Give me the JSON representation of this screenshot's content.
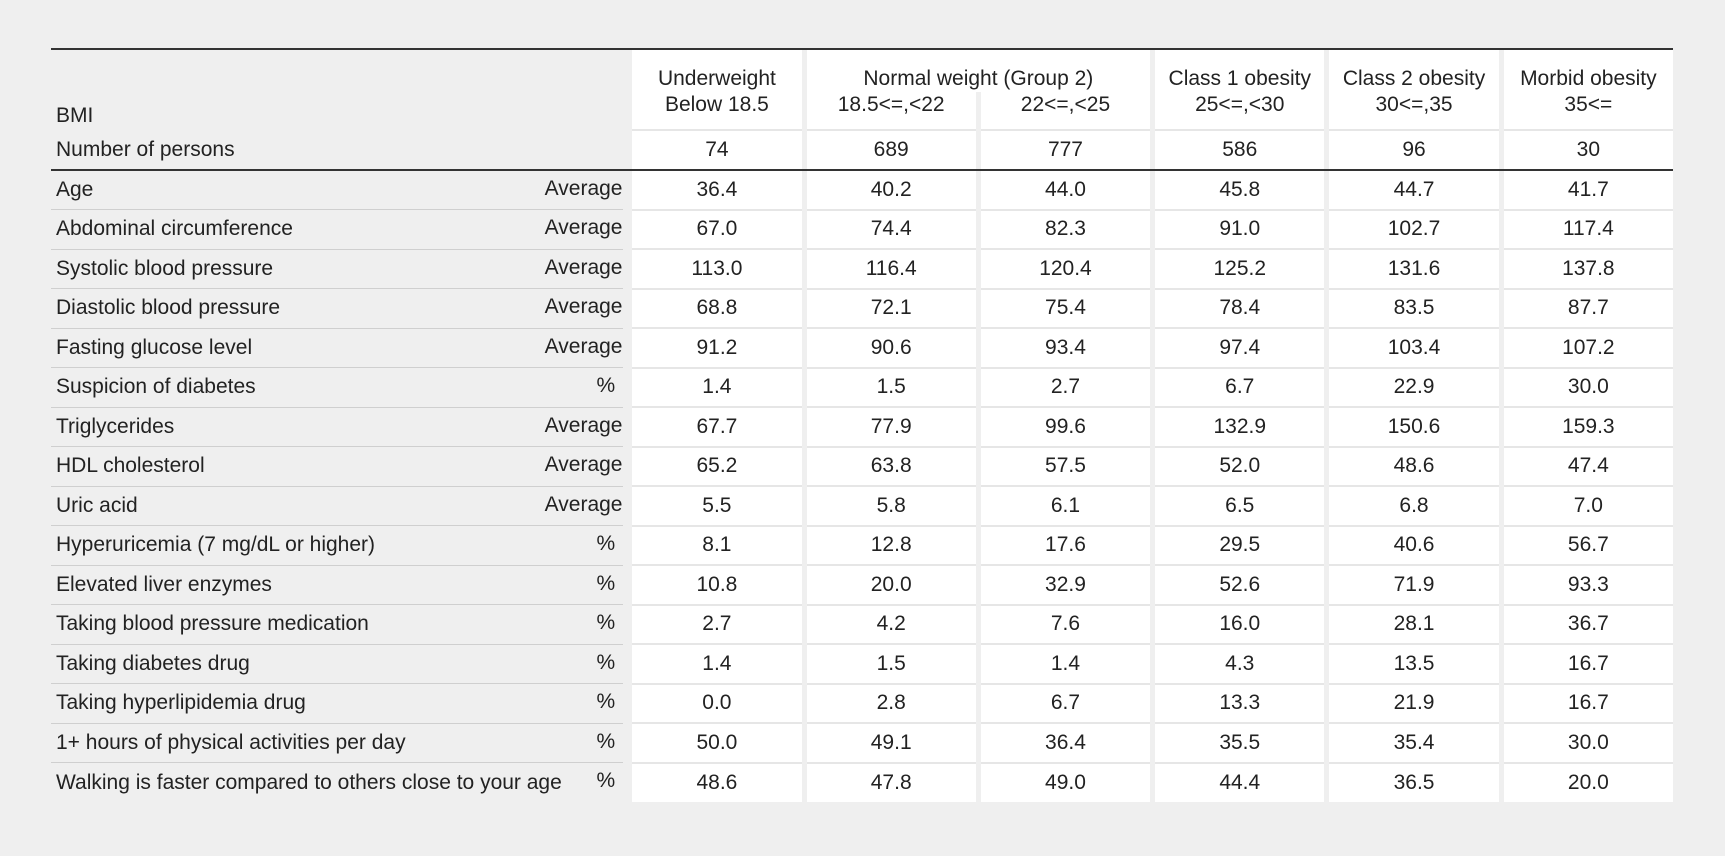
{
  "header": {
    "bmi_label": "BMI",
    "persons_label": "Number of persons",
    "columns": [
      {
        "line1": "Underweight",
        "line2": "Below 18.5"
      },
      {
        "line2": "18.5<=,<22"
      },
      {
        "line2": "22<=,<25"
      },
      {
        "line1": "Class 1 obesity",
        "line2": "25<=,<30"
      },
      {
        "line1": "Class 2 obesity",
        "line2": "30<=,35"
      },
      {
        "line1": "Morbid obesity",
        "line2": "35<="
      }
    ],
    "normal_group_label": "Normal weight (Group 2)",
    "persons": [
      "74",
      "689",
      "777",
      "586",
      "96",
      "30"
    ]
  },
  "rows": [
    {
      "label": "Age",
      "unit": "Average",
      "values": [
        "36.4",
        "40.2",
        "44.0",
        "45.8",
        "44.7",
        "41.7"
      ]
    },
    {
      "label": "Abdominal circumference",
      "unit": "Average",
      "values": [
        "67.0",
        "74.4",
        "82.3",
        "91.0",
        "102.7",
        "117.4"
      ]
    },
    {
      "label": "Systolic blood pressure",
      "unit": "Average",
      "values": [
        "113.0",
        "116.4",
        "120.4",
        "125.2",
        "131.6",
        "137.8"
      ]
    },
    {
      "label": "Diastolic blood pressure",
      "unit": "Average",
      "values": [
        "68.8",
        "72.1",
        "75.4",
        "78.4",
        "83.5",
        "87.7"
      ]
    },
    {
      "label": "Fasting glucose level",
      "unit": "Average",
      "values": [
        "91.2",
        "90.6",
        "93.4",
        "97.4",
        "103.4",
        "107.2"
      ]
    },
    {
      "label": "Suspicion of diabetes",
      "unit": "%",
      "values": [
        "1.4",
        "1.5",
        "2.7",
        "6.7",
        "22.9",
        "30.0"
      ]
    },
    {
      "label": "Triglycerides",
      "unit": "Average",
      "values": [
        "67.7",
        "77.9",
        "99.6",
        "132.9",
        "150.6",
        "159.3"
      ]
    },
    {
      "label": "HDL cholesterol",
      "unit": "Average",
      "values": [
        "65.2",
        "63.8",
        "57.5",
        "52.0",
        "48.6",
        "47.4"
      ]
    },
    {
      "label": "Uric acid",
      "unit": "Average",
      "values": [
        "5.5",
        "5.8",
        "6.1",
        "6.5",
        "6.8",
        "7.0"
      ]
    },
    {
      "label": "Hyperuricemia (7 mg/dL or higher)",
      "unit": "%",
      "values": [
        "8.1",
        "12.8",
        "17.6",
        "29.5",
        "40.6",
        "56.7"
      ]
    },
    {
      "label": "Elevated liver enzymes",
      "unit": "%",
      "values": [
        "10.8",
        "20.0",
        "32.9",
        "52.6",
        "71.9",
        "93.3"
      ]
    },
    {
      "label": "Taking blood pressure medication",
      "unit": "%",
      "values": [
        "2.7",
        "4.2",
        "7.6",
        "16.0",
        "28.1",
        "36.7"
      ]
    },
    {
      "label": "Taking diabetes drug",
      "unit": "%",
      "values": [
        "1.4",
        "1.5",
        "1.4",
        "4.3",
        "13.5",
        "16.7"
      ]
    },
    {
      "label": "Taking hyperlipidemia drug",
      "unit": "%",
      "values": [
        "0.0",
        "2.8",
        "6.7",
        "13.3",
        "21.9",
        "16.7"
      ]
    },
    {
      "label": "1+ hours of physical activities per day",
      "unit": "%",
      "values": [
        "50.0",
        "49.1",
        "36.4",
        "35.5",
        "35.4",
        "30.0"
      ]
    },
    {
      "label": "Walking is faster compared to others close to your age",
      "unit": "%",
      "values": [
        "48.6",
        "47.8",
        "49.0",
        "44.4",
        "36.5",
        "20.0"
      ]
    }
  ]
}
